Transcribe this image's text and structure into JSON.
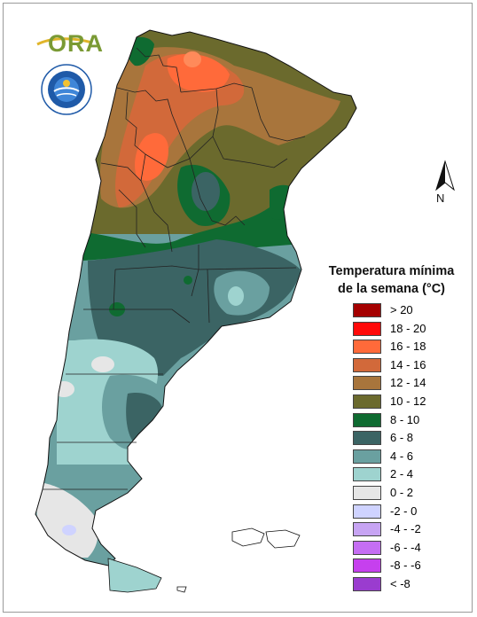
{
  "brand": {
    "logo_text": "ORA",
    "seal_text": "SERVICIO METEOROLOGICO NACIONAL",
    "seal_country": "ARGENTINA",
    "seal_center": "SMN"
  },
  "north_arrow": {
    "label": "N"
  },
  "legend": {
    "title_line1": "Temperatura mínima",
    "title_line2": "de la semana (°C)",
    "items": [
      {
        "label": "> 20",
        "color": "#a50000"
      },
      {
        "label": "18 - 20",
        "color": "#ff0a0a"
      },
      {
        "label": "16 - 18",
        "color": "#ff6a3a"
      },
      {
        "label": "14 - 16",
        "color": "#d2693a"
      },
      {
        "label": "12 - 14",
        "color": "#a8753c"
      },
      {
        "label": "10 - 12",
        "color": "#6b6a2d"
      },
      {
        "label": "8 - 10",
        "color": "#0f6b31"
      },
      {
        "label": "6 - 8",
        "color": "#3b6464"
      },
      {
        "label": "4 - 6",
        "color": "#6aa0a0"
      },
      {
        "label": "2 - 4",
        "color": "#9ed3cf"
      },
      {
        "label": "0 - 2",
        "color": "#e6e6e6"
      },
      {
        "label": "-2 - 0",
        "color": "#cfd3ff"
      },
      {
        "label": "-4 - -2",
        "color": "#c7a4f3"
      },
      {
        "label": "-6 - -4",
        "color": "#c56ef3"
      },
      {
        "label": "-8 - -6",
        "color": "#c640ee"
      },
      {
        "label": "< -8",
        "color": "#9a3ccf"
      }
    ]
  }
}
